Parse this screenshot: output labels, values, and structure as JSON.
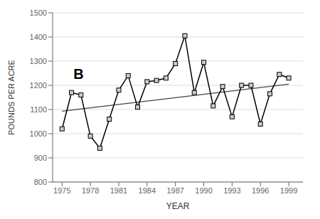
{
  "chart_data": {
    "type": "line",
    "xlabel": "YEAR",
    "ylabel": "POUNDS PER ACRE",
    "x": [
      1975,
      1976,
      1977,
      1978,
      1979,
      1980,
      1981,
      1982,
      1983,
      1984,
      1985,
      1986,
      1987,
      1988,
      1989,
      1990,
      1991,
      1992,
      1993,
      1994,
      1995,
      1996,
      1997,
      1998,
      1999
    ],
    "series": [
      {
        "color": "#444444",
        "x": [
          1975,
          1999
        ],
        "values": [
          1093,
          1205
        ]
      },
      {
        "color": "#000000",
        "marker": "square",
        "values": [
          1020,
          1170,
          1160,
          990,
          940,
          1060,
          1180,
          1240,
          1110,
          1215,
          1220,
          1230,
          1290,
          1405,
          1170,
          1295,
          1115,
          1195,
          1070,
          1200,
          1200,
          1040,
          1165,
          1245,
          1230
        ]
      }
    ],
    "xlim": [
      1974.0,
      2000.5
    ],
    "ylim": [
      800,
      1500
    ],
    "xticks": [
      1975,
      1978,
      1981,
      1984,
      1987,
      1990,
      1993,
      1996,
      1999
    ],
    "yticks": [
      800,
      900,
      1000,
      1100,
      1200,
      1300,
      1400,
      1500
    ],
    "grid": "y",
    "annotations": [
      {
        "text": "B",
        "x": 1976.2,
        "y": 1270
      }
    ]
  }
}
